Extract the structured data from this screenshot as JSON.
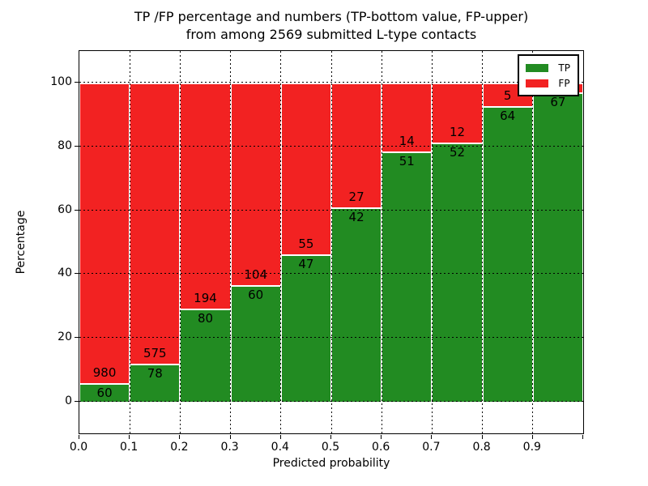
{
  "title": {
    "line1": "TP /FP percentage and numbers (TP-bottom value, FP-upper)",
    "line2": "from among 2569 submitted L-type contacts"
  },
  "axes": {
    "xlabel": "Predicted probability",
    "ylabel": "Percentage",
    "xtick_labels": [
      "0.0",
      "0.1",
      "0.2",
      "0.3",
      "0.4",
      "0.5",
      "0.6",
      "0.7",
      "0.8",
      "0.9"
    ],
    "ytick_values": [
      0,
      20,
      40,
      60,
      80,
      100
    ],
    "ytick_labels": [
      "0",
      "20",
      "40",
      "60",
      "80",
      "100"
    ]
  },
  "legend": {
    "items": [
      {
        "label": "TP",
        "color": "#228b22"
      },
      {
        "label": "FP",
        "color": "#f22222"
      }
    ]
  },
  "chart_data": {
    "type": "bar",
    "stacked": true,
    "title": "TP /FP percentage and numbers (TP-bottom value, FP-upper) from among 2569 submitted L-type contacts",
    "total_contacts": 2569,
    "xlabel": "Predicted probability",
    "ylabel": "Percentage",
    "xlim": [
      0.0,
      1.0
    ],
    "ylim": [
      -10,
      110
    ],
    "grid": true,
    "grid_style": "dotted",
    "legend_position": "upper right",
    "bin_width": 0.1,
    "categories": [
      "0.0-0.1",
      "0.1-0.2",
      "0.2-0.3",
      "0.3-0.4",
      "0.4-0.5",
      "0.5-0.6",
      "0.6-0.7",
      "0.7-0.8",
      "0.8-0.9",
      "0.9-1.0"
    ],
    "series": [
      {
        "name": "TP",
        "color": "#228b22",
        "counts": [
          60,
          78,
          80,
          60,
          47,
          42,
          51,
          52,
          64,
          67
        ],
        "pct": [
          5.77,
          11.94,
          29.2,
          36.59,
          46.08,
          60.87,
          78.46,
          81.25,
          92.75,
          97.1
        ]
      },
      {
        "name": "FP",
        "color": "#f22222",
        "counts": [
          980,
          575,
          194,
          104,
          55,
          27,
          14,
          12,
          5,
          2
        ],
        "pct": [
          94.23,
          88.06,
          70.8,
          63.41,
          53.92,
          39.13,
          21.54,
          18.75,
          7.25,
          2.9
        ]
      }
    ],
    "annotations": {
      "tp_labels": [
        "60",
        "78",
        "80",
        "60",
        "47",
        "42",
        "51",
        "52",
        "64",
        "67"
      ],
      "fp_labels": [
        "980",
        "575",
        "194",
        "104",
        "55",
        "27",
        "14",
        "12",
        "5",
        ""
      ]
    }
  }
}
